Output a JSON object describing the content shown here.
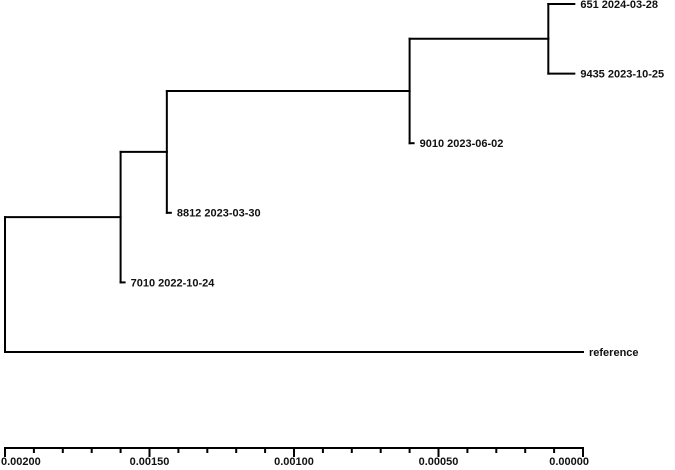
{
  "chart_data": {
    "type": "tree",
    "nodes": [
      {
        "label": "651 2024-03-28",
        "x": 3e-05
      },
      {
        "label": "9435 2023-10-25",
        "x": 3e-05
      },
      {
        "label": "9010 2023-06-02",
        "x": 0.0006
      },
      {
        "label": "8812 2023-03-30",
        "x": 0.00144
      },
      {
        "label": "7010 2022-10-24",
        "x": 0.0016
      },
      {
        "label": "reference",
        "x": 0
      },
      {
        "x": 0.00012,
        "children": [
          0,
          1
        ]
      },
      {
        "x": 0.0006,
        "children": [
          6,
          2
        ]
      },
      {
        "x": 0.00144,
        "children": [
          7,
          3
        ]
      },
      {
        "x": 0.0016,
        "children": [
          8,
          4
        ]
      },
      {
        "x": 0.002,
        "children": [
          9,
          5
        ]
      }
    ],
    "xlim": [
      0.002,
      0
    ],
    "xticks": [
      {
        "value": 0.002,
        "label": "0,00200"
      },
      {
        "value": 0.0015,
        "label": "0,00150"
      },
      {
        "value": 0.001,
        "label": "0,00100"
      },
      {
        "value": 0.0005,
        "label": "0,00050"
      },
      {
        "value": 0,
        "label": "0,00000"
      }
    ],
    "xminorticks": [
      0.0019,
      0.0018,
      0.0017,
      0.0016,
      0.0014,
      0.0013,
      0.0012,
      0.0011,
      0.0009,
      0.0008,
      0.0007,
      0.0006,
      0.0004,
      0.0003,
      0.0002,
      0.0001
    ]
  }
}
